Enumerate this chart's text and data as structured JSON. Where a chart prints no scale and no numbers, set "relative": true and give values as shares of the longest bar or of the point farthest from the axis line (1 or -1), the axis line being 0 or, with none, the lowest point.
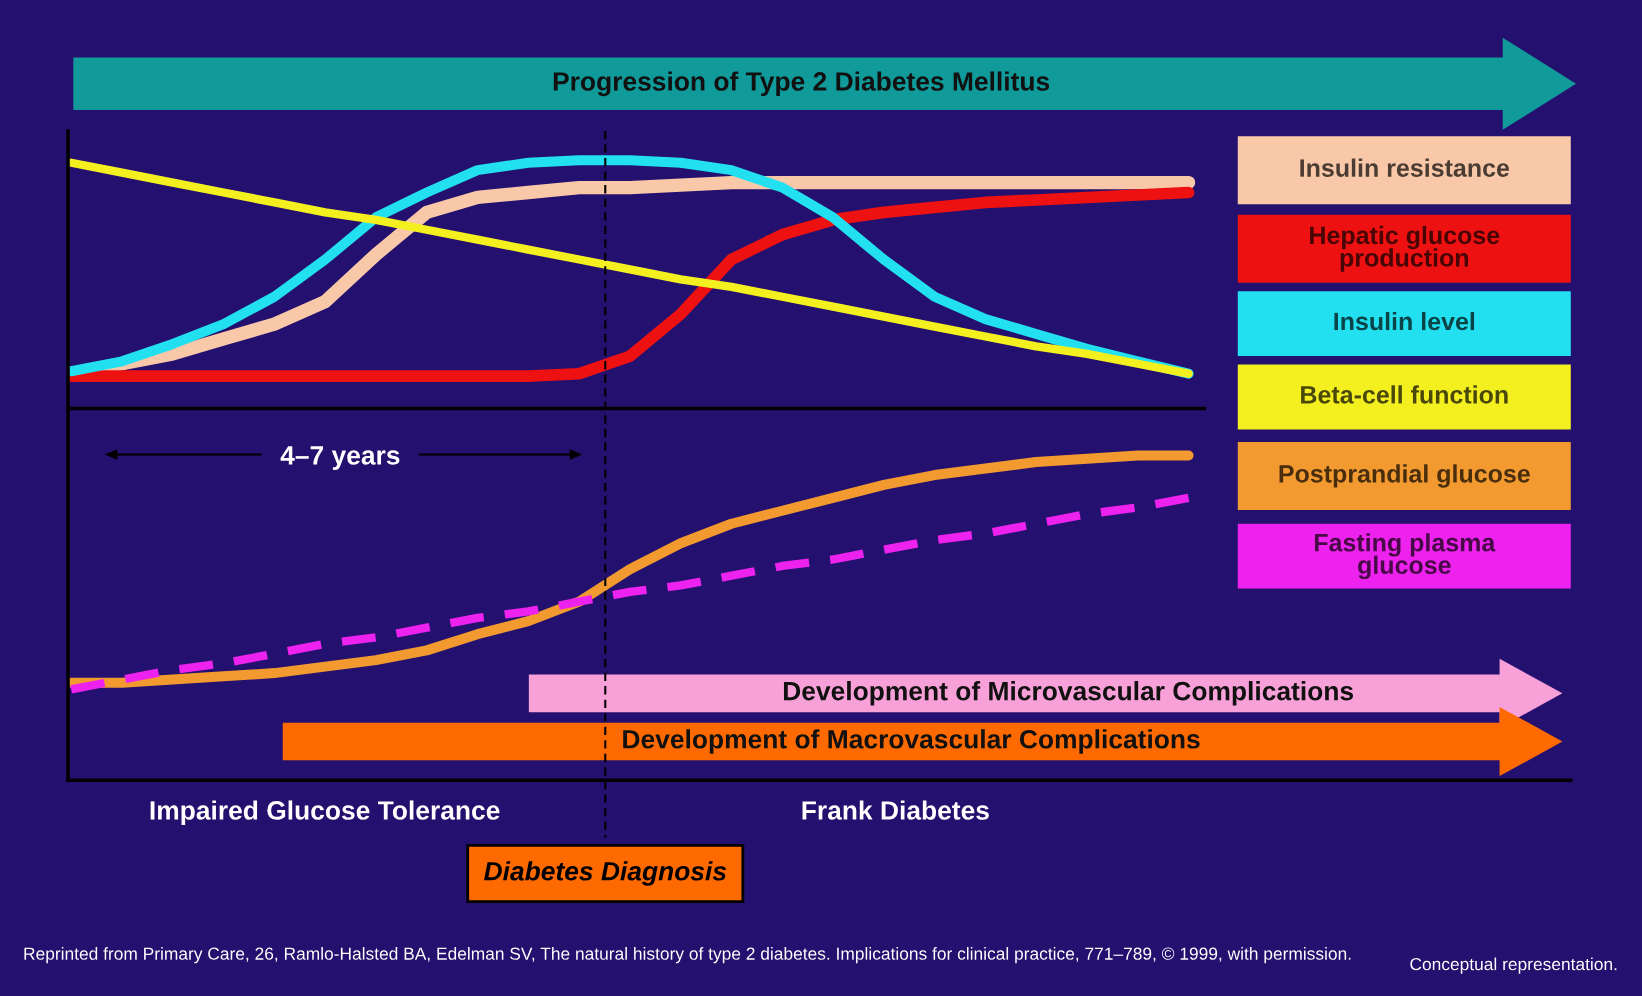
{
  "chart_data": [
    {
      "type": "line",
      "relative": true,
      "title": "Progression of Type 2 Diabetes Mellitus",
      "categories": [
        null,
        null,
        null,
        null,
        null,
        null,
        null,
        null,
        null,
        null,
        null,
        null,
        null,
        null,
        null,
        null,
        null,
        null,
        null,
        null,
        null,
        null,
        null
      ],
      "series": [
        {
          "name": "Insulin resistance",
          "color": "#f8c8a8",
          "values": [
            0.14,
            0.18,
            0.22,
            0.28,
            0.34,
            0.43,
            0.62,
            0.79,
            0.85,
            0.87,
            0.89,
            0.89,
            0.9,
            0.91,
            0.91,
            0.91,
            0.91,
            0.91,
            0.91,
            0.91,
            0.91,
            0.91,
            0.91
          ]
        },
        {
          "name": "Hepatic glucose production",
          "color": "#ee1111",
          "values": [
            0.13,
            0.13,
            0.13,
            0.13,
            0.13,
            0.13,
            0.13,
            0.13,
            0.13,
            0.13,
            0.14,
            0.21,
            0.38,
            0.6,
            0.7,
            0.76,
            0.79,
            0.81,
            0.83,
            0.84,
            0.85,
            0.86,
            0.87
          ]
        },
        {
          "name": "Insulin level",
          "color": "#22e0f0",
          "values": [
            0.15,
            0.19,
            0.26,
            0.34,
            0.45,
            0.6,
            0.77,
            0.87,
            0.96,
            0.99,
            1.0,
            1.0,
            0.99,
            0.96,
            0.89,
            0.77,
            0.6,
            0.45,
            0.36,
            0.3,
            0.24,
            0.19,
            0.14
          ]
        },
        {
          "name": "Beta-cell function",
          "color": "#f4f020",
          "values": [
            0.99,
            0.95,
            0.91,
            0.87,
            0.83,
            0.79,
            0.76,
            0.72,
            0.68,
            0.64,
            0.6,
            0.56,
            0.52,
            0.49,
            0.45,
            0.41,
            0.37,
            0.33,
            0.29,
            0.25,
            0.22,
            0.18,
            0.14
          ]
        }
      ],
      "legend": "right",
      "marker": "none"
    },
    {
      "type": "line",
      "relative": true,
      "categories": [
        null,
        null,
        null,
        null,
        null,
        null,
        null,
        null,
        null,
        null,
        null,
        null,
        null,
        null,
        null,
        null,
        null,
        null,
        null,
        null,
        null,
        null,
        null
      ],
      "series": [
        {
          "name": "Postprandial glucose",
          "color": "#f29a30",
          "values": [
            0.3,
            0.3,
            0.31,
            0.32,
            0.33,
            0.35,
            0.37,
            0.4,
            0.45,
            0.49,
            0.55,
            0.65,
            0.73,
            0.79,
            0.83,
            0.87,
            0.91,
            0.94,
            0.96,
            0.98,
            0.99,
            1.0,
            1.0
          ]
        },
        {
          "name": "Fasting plasma glucose",
          "color": "#ee22ee",
          "line_style": "dashed",
          "values": [
            0.28,
            0.31,
            0.34,
            0.36,
            0.39,
            0.42,
            0.44,
            0.47,
            0.5,
            0.52,
            0.55,
            0.58,
            0.6,
            0.63,
            0.66,
            0.68,
            0.71,
            0.74,
            0.76,
            0.79,
            0.82,
            0.84,
            0.87
          ]
        }
      ],
      "annotations": [
        "4–7 years",
        "Development of Microvascular Complications",
        "Development of Macrovascular Complications",
        "Impaired Glucose Tolerance",
        "Frank Diabetes",
        "Reprinted from Primary Care, 26, Ramlo-Halsted BA, Edelman SV, The natural history of type 2 diabetes. Implications for clinical practice, 771–789, © 1999, with permission.",
        "Conceptual representation.",
        "Diabetes Diagnosis"
      ],
      "legend": "right",
      "marker": "none"
    }
  ]
}
